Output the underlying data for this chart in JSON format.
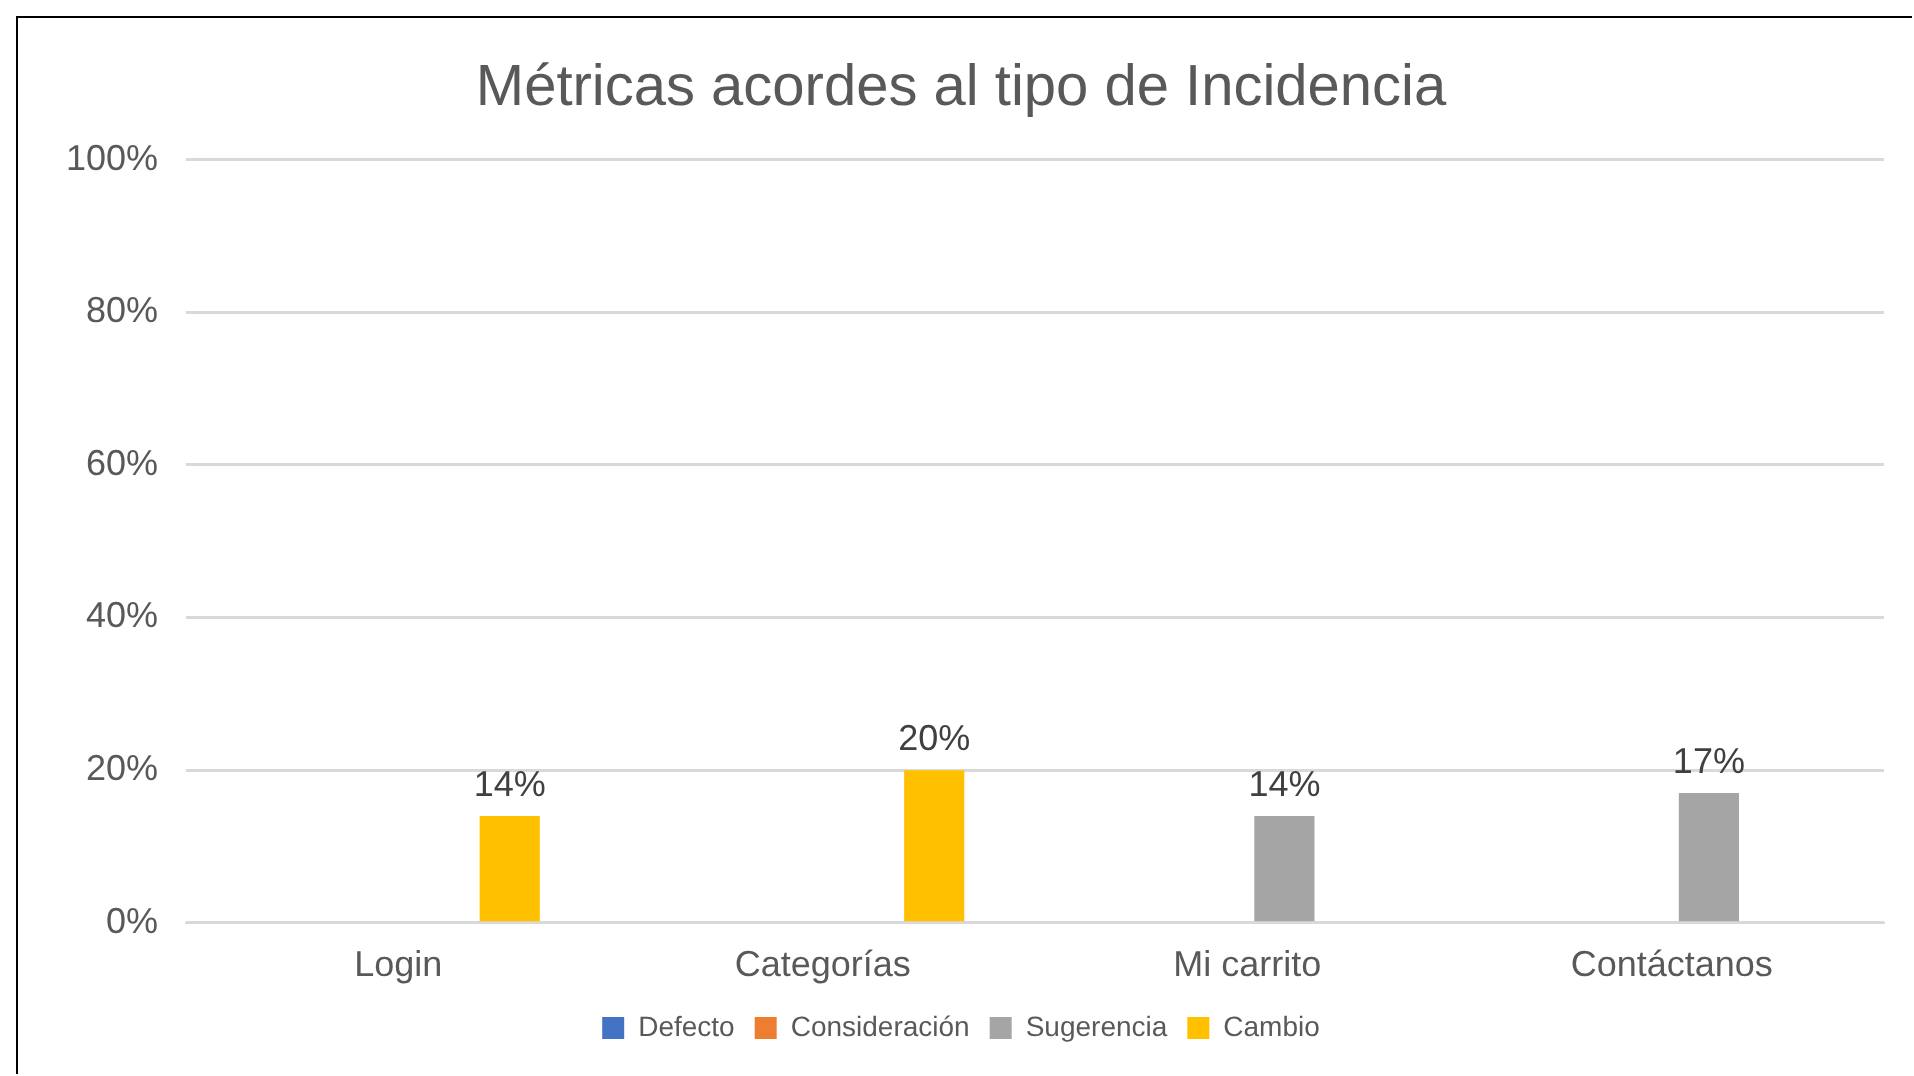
{
  "chart_data": {
    "type": "bar",
    "title": "Métricas acordes al tipo de Incidencia",
    "categories": [
      "Login",
      "Categorías",
      "Mi carrito",
      "Contáctanos"
    ],
    "series": [
      {
        "name": "Defecto",
        "color": "#4472c4",
        "values": [
          null,
          null,
          null,
          null
        ],
        "value_labels": [
          null,
          null,
          null,
          null
        ]
      },
      {
        "name": "Consideración",
        "color": "#ed7d31",
        "values": [
          null,
          null,
          null,
          null
        ],
        "value_labels": [
          null,
          null,
          null,
          null
        ]
      },
      {
        "name": "Sugerencia",
        "color": "#a5a5a5",
        "values": [
          null,
          null,
          14,
          17
        ],
        "value_labels": [
          null,
          null,
          "14%",
          "17%"
        ]
      },
      {
        "name": "Cambio",
        "color": "#ffc000",
        "values": [
          14,
          20,
          null,
          null
        ],
        "value_labels": [
          "14%",
          "20%",
          null,
          null
        ]
      }
    ],
    "ylim": [
      0,
      100
    ],
    "yticks": [
      {
        "value": 0,
        "label": "0%"
      },
      {
        "value": 20,
        "label": "20%"
      },
      {
        "value": 40,
        "label": "40%"
      },
      {
        "value": 60,
        "label": "60%"
      },
      {
        "value": 80,
        "label": "80%"
      },
      {
        "value": 100,
        "label": "100%"
      }
    ],
    "grid": "y",
    "legend": "bottom"
  }
}
